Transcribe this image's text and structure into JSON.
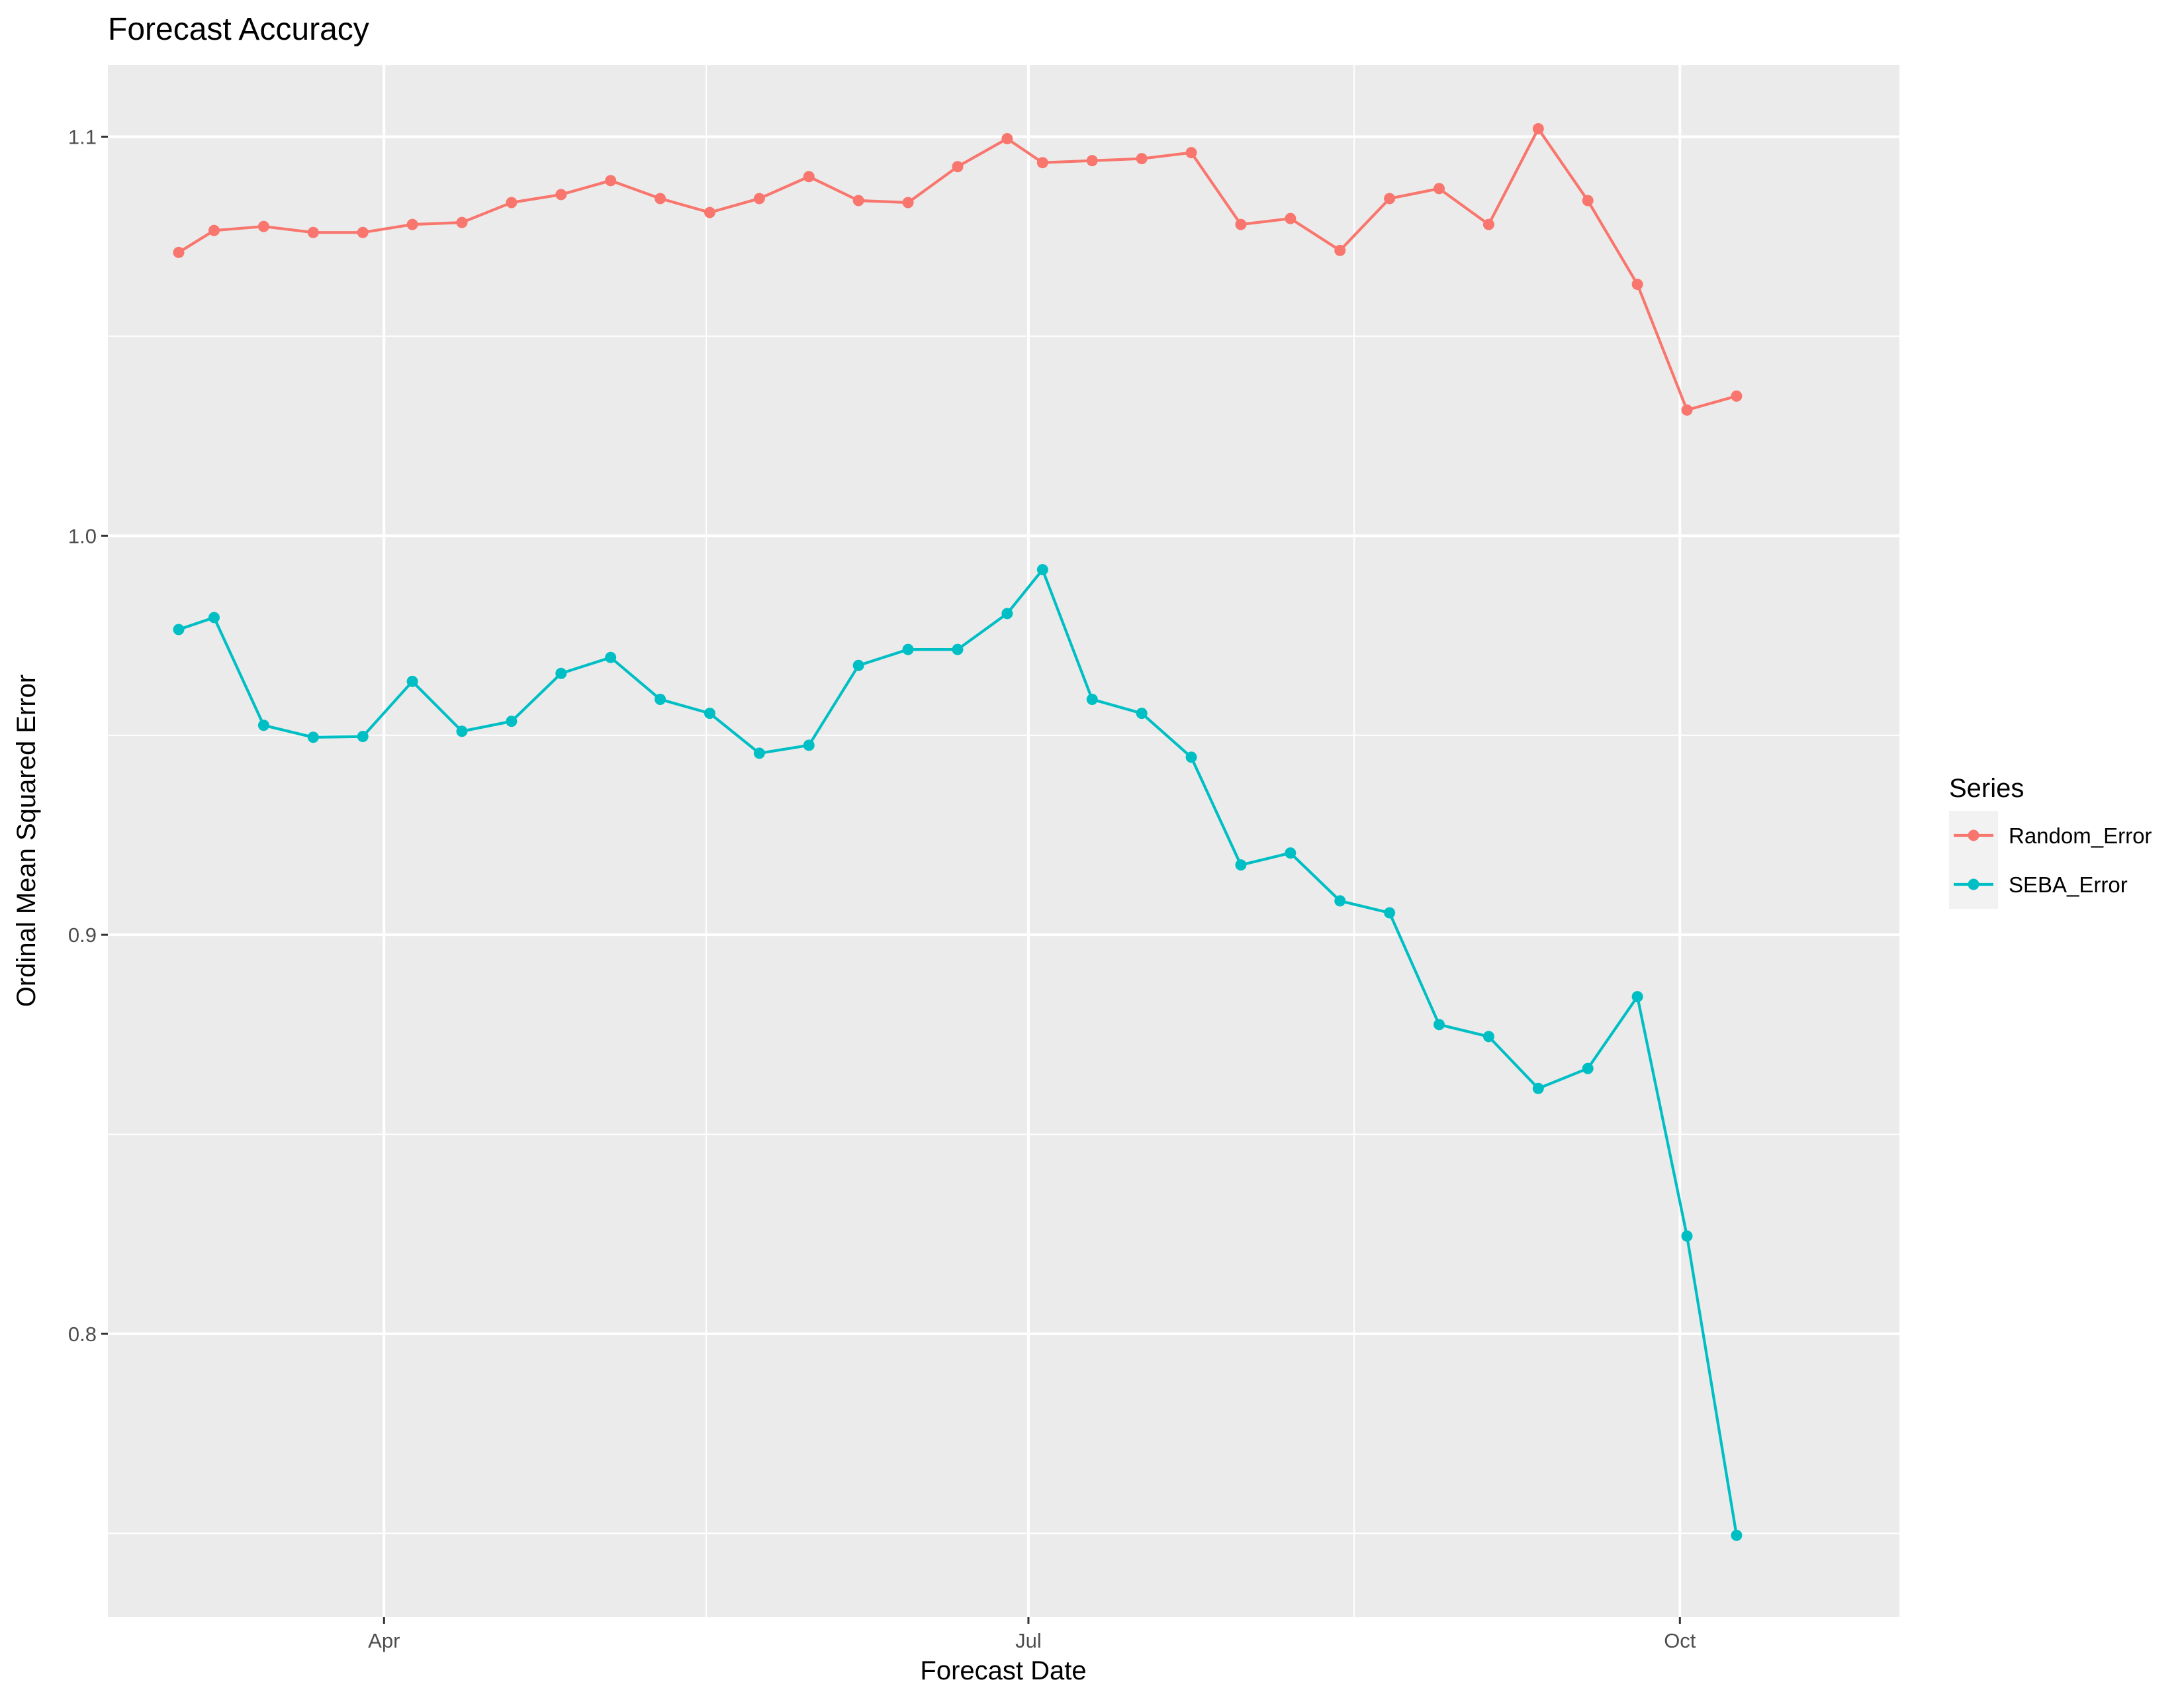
{
  "chart_data": {
    "type": "line",
    "title": "Forecast Accuracy",
    "xlabel": "Forecast Date",
    "ylabel": "Ordinal Mean Squared Error",
    "x_ticks": [
      {
        "date": "2017-04-01",
        "label": "Apr"
      },
      {
        "date": "2017-07-01",
        "label": "Jul"
      },
      {
        "date": "2017-10-01",
        "label": "Oct"
      }
    ],
    "y_ticks": [
      0.8,
      0.9,
      1.0,
      1.1
    ],
    "xlim": [
      "2017-02-21",
      "2017-11-01"
    ],
    "ylim": [
      0.729,
      1.118
    ],
    "grid": true,
    "legend": {
      "title": "Series",
      "position": "right"
    },
    "x": [
      "2017-03-03",
      "2017-03-08",
      "2017-03-15",
      "2017-03-22",
      "2017-03-29",
      "2017-04-05",
      "2017-04-12",
      "2017-04-19",
      "2017-04-26",
      "2017-05-03",
      "2017-05-10",
      "2017-05-17",
      "2017-05-24",
      "2017-05-31",
      "2017-06-07",
      "2017-06-14",
      "2017-06-21",
      "2017-06-28",
      "2017-07-03",
      "2017-07-10",
      "2017-07-17",
      "2017-07-24",
      "2017-07-31",
      "2017-08-07",
      "2017-08-14",
      "2017-08-21",
      "2017-08-28",
      "2017-09-04",
      "2017-09-11",
      "2017-09-18",
      "2017-09-25",
      "2017-10-02",
      "2017-10-09"
    ],
    "series": [
      {
        "name": "Random_Error",
        "color": "#F8766D",
        "values": [
          1.071,
          1.0765,
          1.0775,
          1.076,
          1.076,
          1.078,
          1.0785,
          1.0835,
          1.0855,
          1.089,
          1.0845,
          1.081,
          1.0845,
          1.09,
          1.084,
          1.0835,
          1.0925,
          1.0995,
          1.0935,
          1.094,
          1.0945,
          1.096,
          1.078,
          1.0795,
          1.0715,
          1.0845,
          1.087,
          1.078,
          1.102,
          1.084,
          1.063,
          1.0315,
          1.035
        ]
      },
      {
        "name": "SEBA_Error",
        "color": "#00BFC4",
        "values": [
          0.9765,
          0.9795,
          0.9525,
          0.9495,
          0.9497,
          0.9635,
          0.951,
          0.9535,
          0.9655,
          0.9695,
          0.959,
          0.9555,
          0.9455,
          0.9475,
          0.9675,
          0.9715,
          0.9715,
          0.9805,
          0.9915,
          0.959,
          0.9555,
          0.9445,
          0.9175,
          0.9205,
          0.9085,
          0.9055,
          0.8775,
          0.8745,
          0.8615,
          0.8665,
          0.8845,
          0.8245,
          0.7495
        ]
      }
    ]
  }
}
